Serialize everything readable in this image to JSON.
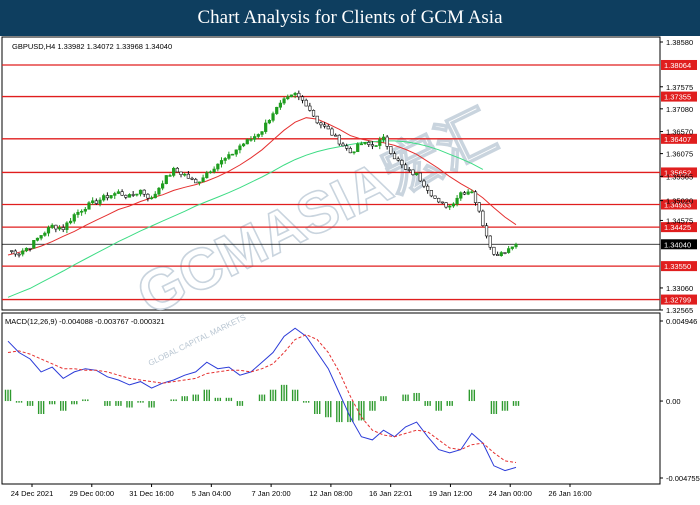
{
  "header": {
    "title": "Chart Analysis for Clients of GCM Asia"
  },
  "watermark": {
    "text": "GCMASIA宏汇",
    "subtext": "GLOBAL CAPITAL MARKETS"
  },
  "colors": {
    "header_bg": "#0e3e5f",
    "bull_candle": "#1f9d1f",
    "bear_candle": "#111111",
    "ma_fast": "#e53030",
    "ma_slow": "#3ddc84",
    "level_line": "#e01e1e",
    "level_label_bg": "#e01e1e",
    "price_line": "#000000",
    "macd_hist": "#2e9a2e",
    "macd_line": "#2b3bd8",
    "signal_line": "#e53030"
  },
  "chart_data": [
    {
      "type": "candlestick",
      "title": "GBPUSD,H4  1.33982 1.34072 1.33968 1.34040",
      "symbol": "GBPUSD",
      "timeframe": "H4",
      "ohlc_last": [
        1.33982,
        1.34072,
        1.33968,
        1.3404
      ],
      "y_axis_ticks": [
        "1.38580",
        "1.37575",
        "1.37080",
        "1.36570",
        "1.36075",
        "1.35565",
        "1.35020",
        "1.34575",
        "1.33060",
        "1.32565"
      ],
      "ylim": [
        1.32565,
        1.3858
      ],
      "x_axis_labels": [
        "24 Dec 2021",
        "29 Dec 00:00",
        "31 Dec 16:00",
        "5 Jan 04:00",
        "7 Jan 20:00",
        "12 Jan 08:00",
        "16 Jan 22:01",
        "19 Jan 12:00",
        "24 Jan 00:00",
        "26 Jan 16:00"
      ],
      "levels": [
        {
          "value": 1.38064,
          "label": "1.38064"
        },
        {
          "value": 1.37355,
          "label": "1.37355"
        },
        {
          "value": 1.36407,
          "label": "1.36407"
        },
        {
          "value": 1.35652,
          "label": "1.35652"
        },
        {
          "value": 1.34933,
          "label": "1.34933"
        },
        {
          "value": 1.34425,
          "label": "1.34425"
        },
        {
          "value": 1.3355,
          "label": "1.33550"
        },
        {
          "value": 1.32799,
          "label": "1.32799"
        }
      ],
      "current_price": {
        "value": 1.3404,
        "label": "1.34040"
      },
      "price_path": [
        1.339,
        1.3385,
        1.34,
        1.3425,
        1.3445,
        1.344,
        1.347,
        1.3488,
        1.35,
        1.3512,
        1.352,
        1.351,
        1.3525,
        1.3505,
        1.3545,
        1.357,
        1.356,
        1.354,
        1.3565,
        1.3585,
        1.36,
        1.3625,
        1.364,
        1.366,
        1.37,
        1.3725,
        1.374,
        1.372,
        1.368,
        1.366,
        1.3635,
        1.361,
        1.363,
        1.3625,
        1.364,
        1.36,
        1.357,
        1.356,
        1.353,
        1.3495,
        1.349,
        1.352,
        1.3525,
        1.345,
        1.338,
        1.339,
        1.3404
      ],
      "ma_fast": [
        1.338,
        1.3386,
        1.3392,
        1.34,
        1.341,
        1.3422,
        1.3433,
        1.3446,
        1.3458,
        1.347,
        1.3482,
        1.349,
        1.35,
        1.3508,
        1.3515,
        1.3525,
        1.3532,
        1.3538,
        1.3546,
        1.3556,
        1.3568,
        1.3582,
        1.3598,
        1.3616,
        1.3638,
        1.366,
        1.3678,
        1.3688,
        1.3685,
        1.3674,
        1.3662,
        1.3648,
        1.364,
        1.3635,
        1.3632,
        1.3626,
        1.3617,
        1.3606,
        1.359,
        1.3574,
        1.3556,
        1.354,
        1.3526,
        1.3508,
        1.3486,
        1.3465,
        1.3448
      ],
      "ma_slow": [
        1.3285,
        1.3295,
        1.3305,
        1.3318,
        1.3331,
        1.3344,
        1.3358,
        1.3371,
        1.3384,
        1.3397,
        1.341,
        1.3422,
        1.3434,
        1.3445,
        1.3456,
        1.3467,
        1.3478,
        1.349,
        1.35,
        1.351,
        1.352,
        1.3531,
        1.3543,
        1.3555,
        1.3568,
        1.3582,
        1.3594,
        1.3604,
        1.3612,
        1.3618,
        1.3623,
        1.3628,
        1.3632,
        1.3634,
        1.3636,
        1.3636,
        1.3634,
        1.363,
        1.3624,
        1.3616,
        1.3606,
        1.3596,
        1.3585,
        1.3572,
        null,
        null,
        null
      ]
    },
    {
      "type": "macd",
      "title": "MACD(12,26,9) -0.004088 -0.003767 -0.000321",
      "params": "MACD(12,26,9)",
      "values": {
        "macd": -0.004088,
        "signal": -0.003767,
        "histogram": -0.000321
      },
      "y_axis_ticks": [
        "0.004946",
        "0.00",
        "-0.004755"
      ],
      "ylim": [
        -0.004755,
        0.004946
      ],
      "macd_line": [
        0.0037,
        0.003,
        0.0026,
        0.0018,
        0.0021,
        0.0014,
        0.0018,
        0.002,
        0.0019,
        0.0015,
        0.0013,
        0.001,
        0.0012,
        0.0008,
        0.0011,
        0.0013,
        0.0016,
        0.0018,
        0.0024,
        0.002,
        0.0021,
        0.0016,
        0.0018,
        0.0024,
        0.003,
        0.004,
        0.0045,
        0.004,
        0.003,
        0.002,
        0.0005,
        -0.001,
        -0.0022,
        -0.0024,
        -0.0018,
        -0.0022,
        -0.0016,
        -0.0013,
        -0.0022,
        -0.003,
        -0.0032,
        -0.003,
        -0.002,
        -0.0026,
        -0.004,
        -0.0043,
        -0.0041
      ],
      "signal_line": [
        0.003,
        0.0031,
        0.0029,
        0.0026,
        0.0023,
        0.002,
        0.002,
        0.0019,
        0.0019,
        0.0018,
        0.0016,
        0.0014,
        0.0013,
        0.0012,
        0.0011,
        0.0012,
        0.0013,
        0.0014,
        0.0017,
        0.0018,
        0.0019,
        0.0019,
        0.0018,
        0.002,
        0.0023,
        0.003,
        0.0038,
        0.0041,
        0.0038,
        0.003,
        0.0018,
        0.0003,
        -0.001,
        -0.0018,
        -0.0021,
        -0.0022,
        -0.002,
        -0.0018,
        -0.0019,
        -0.0024,
        -0.0029,
        -0.003,
        -0.0027,
        -0.0026,
        -0.0032,
        -0.0037,
        -0.0038
      ],
      "histogram": [
        0.0007,
        -0.0001,
        -0.0003,
        -0.0008,
        -0.0002,
        -0.0006,
        -0.0002,
        0.0001,
        0.0,
        -0.0003,
        -0.0003,
        -0.0004,
        -0.0001,
        -0.0004,
        0.0,
        0.0001,
        0.0003,
        0.0004,
        0.0007,
        0.0002,
        0.0002,
        -0.0003,
        0.0,
        0.0004,
        0.0007,
        0.001,
        0.0007,
        -0.0001,
        -0.0008,
        -0.001,
        -0.0013,
        -0.0013,
        -0.0012,
        -0.0006,
        0.0003,
        0.0,
        0.0004,
        0.0005,
        -0.0003,
        -0.0006,
        -0.0003,
        0.0,
        0.0007,
        0.0,
        -0.0008,
        -0.0006,
        -0.0003
      ]
    }
  ]
}
